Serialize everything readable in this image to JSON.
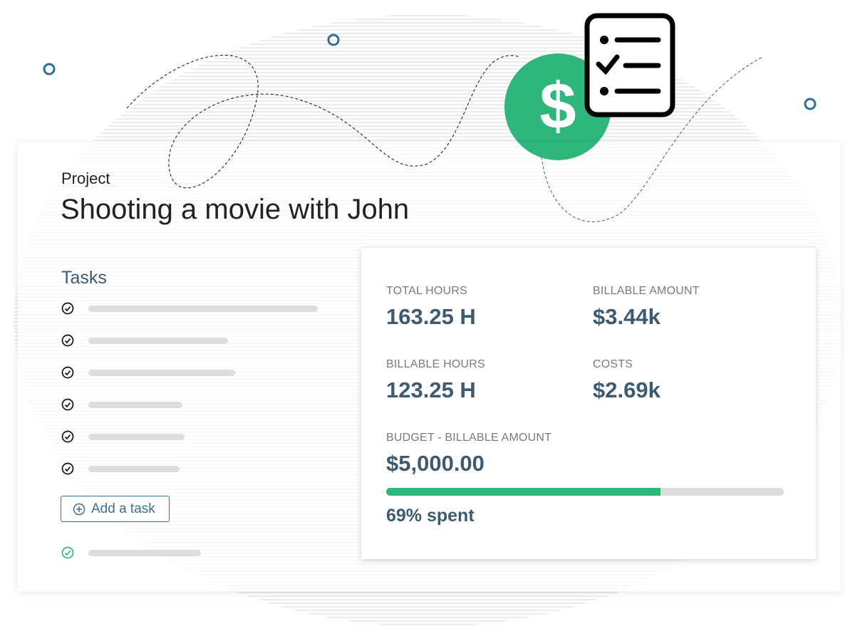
{
  "project": {
    "label": "Project",
    "title": "Shooting a movie with John"
  },
  "tasks": {
    "heading": "Tasks",
    "add_button": "Add a task"
  },
  "stats": [
    {
      "label": "TOTAL HOURS",
      "value": "163.25 H"
    },
    {
      "label": "BILLABLE AMOUNT",
      "value": "$3.44k"
    },
    {
      "label": "BILLABLE HOURS",
      "value": "123.25 H"
    },
    {
      "label": "COSTS",
      "value": "$2.69k"
    }
  ],
  "budget": {
    "label": "BUDGET - BILLABLE AMOUNT",
    "value": "$5,000.00",
    "spent_percent": 69,
    "spent_label": "69% spent"
  }
}
